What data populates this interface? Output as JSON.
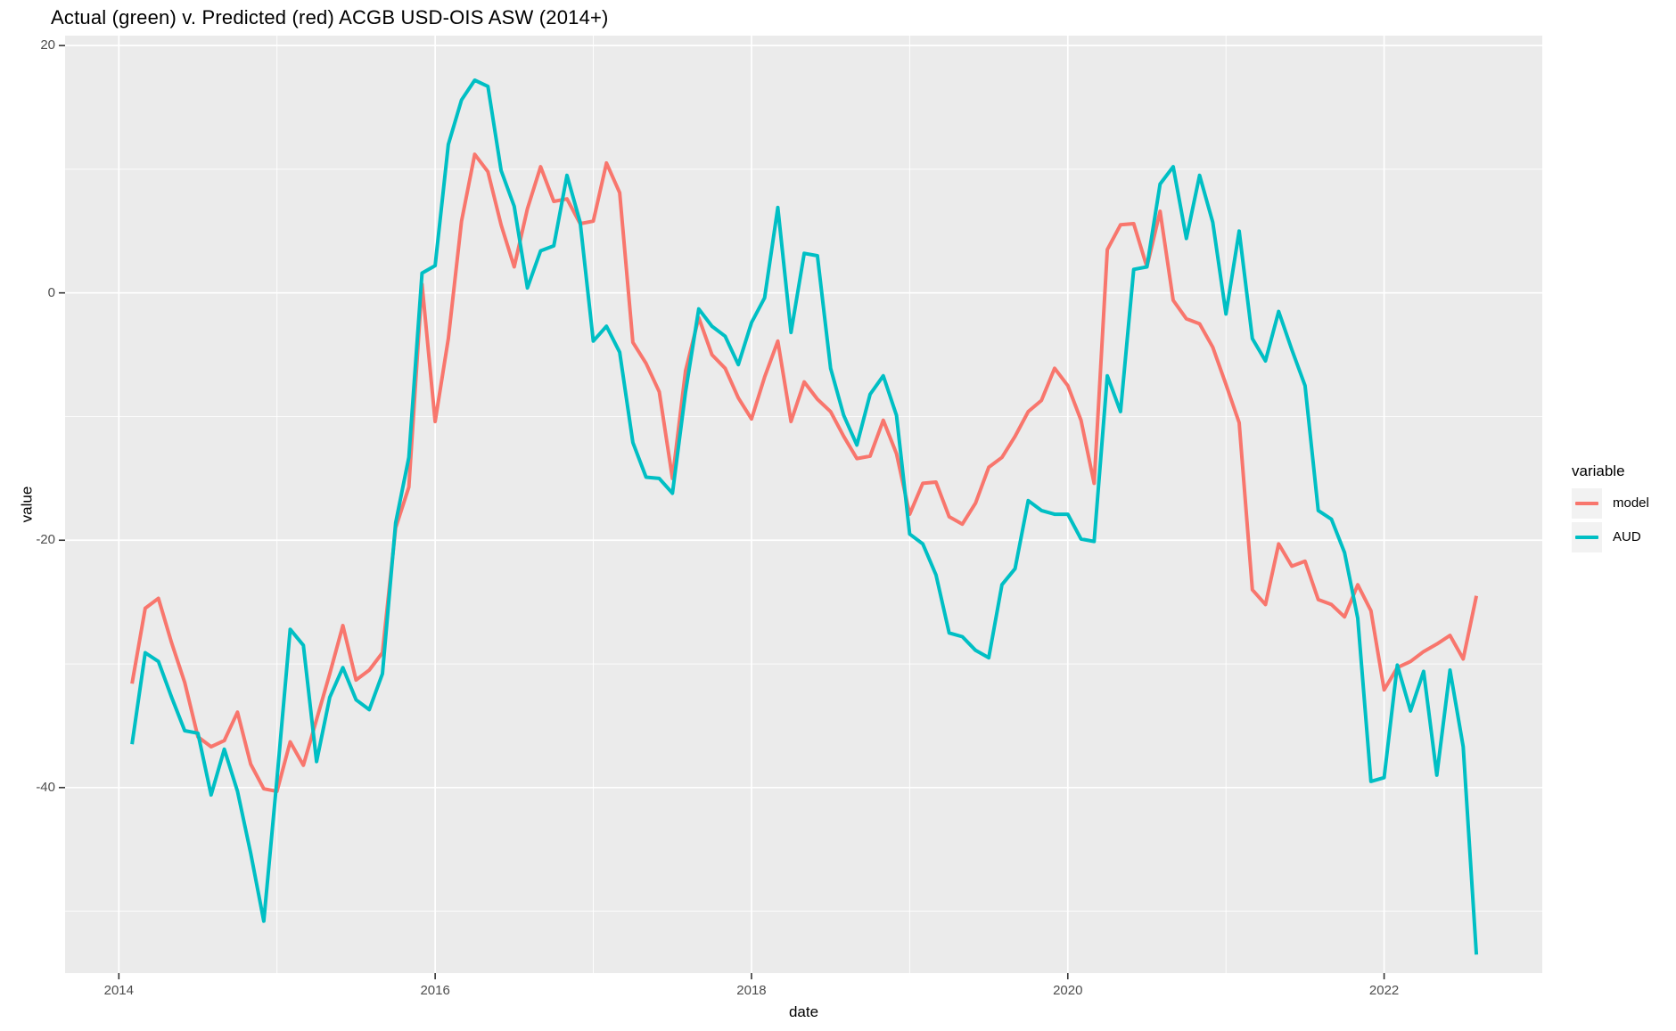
{
  "chart": {
    "title": "Actual (green) v. Predicted (red) ACGB USD-OIS ASW (2014+)",
    "xlabel": "date",
    "ylabel": "value"
  },
  "legend": {
    "title": "variable",
    "entries": [
      {
        "label": "model",
        "color": "#F8766D"
      },
      {
        "label": "AUD",
        "color": "#00BFC4"
      }
    ]
  },
  "chart_data": {
    "type": "line",
    "title": "Actual (green) v. Predicted (red) ACGB USD-OIS ASW (2014+)",
    "xlabel": "date",
    "ylabel": "value",
    "x_unit": "monthly",
    "start": "2014-02",
    "end": "2022-08",
    "xlim": [
      2013.66,
      2023.0
    ],
    "ylim": [
      -55,
      20.8
    ],
    "x_major_ticks": [
      2014,
      2016,
      2018,
      2020,
      2022
    ],
    "x_tick_labels": [
      "2014",
      "2016",
      "2018",
      "2020",
      "2022"
    ],
    "x_minor_ticks": [
      2015,
      2017,
      2019,
      2021
    ],
    "y_major_ticks": [
      20,
      0,
      -20,
      -40
    ],
    "y_tick_labels": [
      "20",
      "0",
      "-20",
      "-40"
    ],
    "y_minor_ticks": [
      10,
      -10,
      -30,
      -50
    ],
    "panel_bg": "#EBEBEB",
    "grid_color": "#FFFFFF",
    "tick_mark_color": "#333333",
    "legend_position": "right",
    "grid": true,
    "series": [
      {
        "name": "model",
        "color": "#F8766D",
        "values": [
          -31.6,
          -25.5,
          -24.7,
          -28.3,
          -31.5,
          -35.9,
          -36.7,
          -36.2,
          -33.9,
          -38.1,
          -40.1,
          -40.3,
          -36.3,
          -38.2,
          -34.5,
          -30.8,
          -26.9,
          -31.3,
          -30.5,
          -29.1,
          -19.0,
          -15.7,
          0.7,
          -10.4,
          -3.7,
          5.8,
          11.2,
          9.8,
          5.5,
          2.1,
          6.8,
          10.2,
          7.4,
          7.6,
          5.6,
          5.8,
          10.5,
          8.1,
          -4.0,
          -5.7,
          -8.0,
          -15.0,
          -6.3,
          -2.0,
          -5.0,
          -6.1,
          -8.5,
          -10.2,
          -6.8,
          -3.9,
          -10.4,
          -7.2,
          -8.6,
          -9.6,
          -11.6,
          -13.4,
          -13.2,
          -10.3,
          -13.0,
          -17.9,
          -15.4,
          -15.3,
          -18.1,
          -18.7,
          -17.0,
          -14.1,
          -13.3,
          -11.6,
          -9.6,
          -8.7,
          -6.1,
          -7.5,
          -10.3,
          -15.4,
          3.5,
          5.5,
          5.6,
          2.1,
          6.6,
          -0.6,
          -2.1,
          -2.5,
          -4.4,
          -7.4,
          -10.5,
          -24.0,
          -25.2,
          -20.3,
          -22.1,
          -21.7,
          -24.8,
          -25.2,
          -26.2,
          -23.6,
          -25.7,
          -32.1,
          -30.3,
          -29.8,
          -29.0,
          -28.4,
          -27.7,
          -29.6,
          -24.5
        ]
      },
      {
        "name": "AUD",
        "color": "#00BFC4",
        "values": [
          -36.5,
          -29.1,
          -29.8,
          -32.7,
          -35.4,
          -35.6,
          -40.6,
          -36.9,
          -40.3,
          -45.3,
          -50.8,
          -39.3,
          -27.2,
          -28.5,
          -37.9,
          -32.7,
          -30.3,
          -32.9,
          -33.7,
          -30.8,
          -18.6,
          -13.3,
          1.6,
          2.2,
          12.0,
          15.6,
          17.2,
          16.7,
          9.9,
          7.0,
          0.4,
          3.4,
          3.8,
          9.5,
          5.7,
          -3.9,
          -2.7,
          -4.8,
          -12.1,
          -14.9,
          -15.0,
          -16.2,
          -8.0,
          -1.3,
          -2.7,
          -3.5,
          -5.8,
          -2.4,
          -0.4,
          6.9,
          -3.2,
          3.2,
          3.0,
          -6.1,
          -9.9,
          -12.3,
          -8.2,
          -6.7,
          -9.9,
          -19.5,
          -20.3,
          -22.8,
          -27.5,
          -27.8,
          -28.9,
          -29.5,
          -23.6,
          -22.3,
          -16.8,
          -17.6,
          -17.9,
          -17.9,
          -19.9,
          -20.1,
          -6.7,
          -9.6,
          1.9,
          2.1,
          8.8,
          10.2,
          4.4,
          9.5,
          5.7,
          -1.7,
          5.0,
          -3.7,
          -5.5,
          -1.5,
          -4.6,
          -7.5,
          -17.6,
          -18.3,
          -21.0,
          -26.3,
          -39.5,
          -39.2,
          -30.1,
          -33.8,
          -30.6,
          -39.0,
          -30.5,
          -36.7,
          -53.5
        ]
      }
    ]
  }
}
